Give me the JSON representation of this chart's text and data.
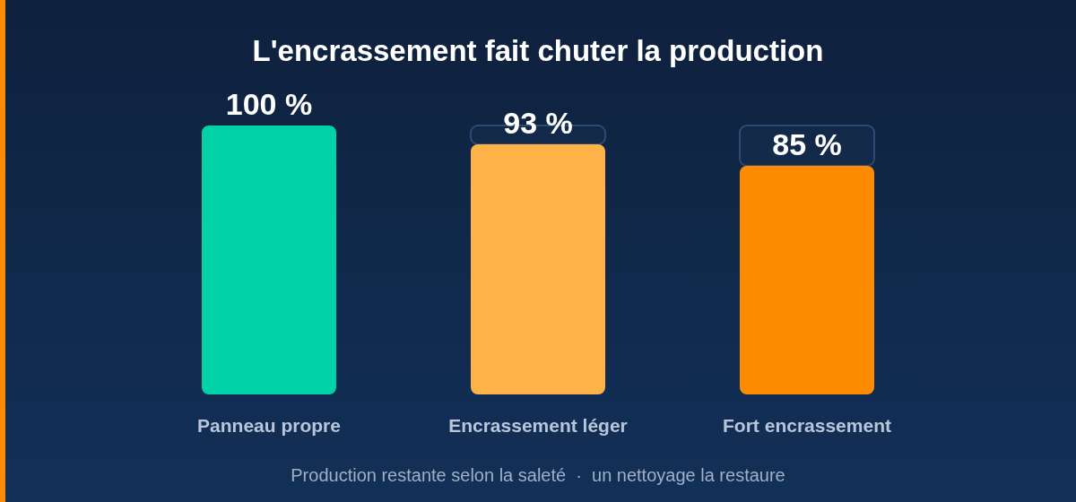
{
  "chart_data": {
    "type": "bar",
    "title": "L'encrassement fait chuter la production",
    "categories": [
      "Panneau propre",
      "Encrassement léger",
      "Fort encrassement"
    ],
    "stacked": true,
    "series": [
      {
        "colors": [
          "#00d1a7",
          "#ffb347",
          "#ff8c00"
        ],
        "values": [
          100,
          93,
          85
        ],
        "value_labels": [
          "100 %",
          "93 %",
          "85 %"
        ]
      },
      {
        "color": "#2d4a72",
        "values": [
          null,
          7,
          15
        ]
      }
    ],
    "ylim": [
      0,
      100
    ],
    "annotations": [
      "Production restante selon la saleté  ·  un nettoyage la restaure"
    ]
  }
}
